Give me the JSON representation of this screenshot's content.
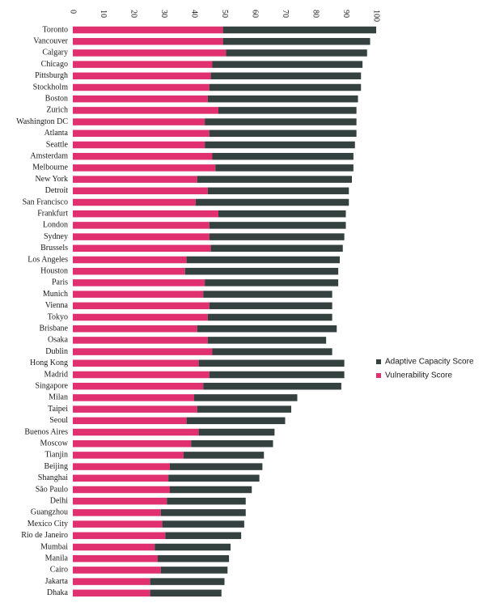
{
  "chart_data": {
    "type": "bar",
    "orientation": "horizontal",
    "stacked": true,
    "title": "",
    "xlabel": "",
    "ylabel": "",
    "xlim": [
      0,
      100
    ],
    "xticks": [
      0,
      10,
      20,
      30,
      40,
      50,
      60,
      70,
      80,
      90,
      100
    ],
    "grid": false,
    "legend_position": "right",
    "categories": [
      "Toronto",
      "Vancouver",
      "Calgary",
      "Chicago",
      "Pittsburgh",
      "Stockholm",
      "Boston",
      "Zurich",
      "Washington DC",
      "Atlanta",
      "Seattle",
      "Amsterdam",
      "Melbourne",
      "New York",
      "Detroit",
      "San Francisco",
      "Frankfurt",
      "London",
      "Sydney",
      "Brussels",
      "Los Angeles",
      "Houston",
      "Paris",
      "Munich",
      "Vienna",
      "Tokyo",
      "Brisbane",
      "Osaka",
      "Dublin",
      "Hong Kong",
      "Madrid",
      "Singapore",
      "Milan",
      "Taipei",
      "Seoul",
      "Buenos Aires",
      "Moscow",
      "Tianjin",
      "Beijing",
      "Shanghai",
      "São Paulo",
      "Delhi",
      "Guangzhou",
      "Mexico City",
      "Rio de Janeiro",
      "Mumbai",
      "Manila",
      "Cairo",
      "Jakarta",
      "Dhaka"
    ],
    "series": [
      {
        "name": "Vulnerability Score",
        "color": "#e0306f",
        "values": [
          49.5,
          49.5,
          50.5,
          46,
          45.5,
          45,
          44.5,
          48,
          43.5,
          45,
          43.5,
          46,
          47,
          41,
          44.5,
          40.5,
          48,
          45,
          45,
          45.5,
          37.5,
          37,
          43.5,
          43,
          45,
          44.5,
          41,
          44.5,
          46,
          41.5,
          45,
          43,
          40,
          41,
          37.5,
          41.5,
          39,
          36.5,
          32,
          31.5,
          32,
          31,
          29,
          29.5,
          30.5,
          27,
          28,
          29,
          25.5,
          25.5
        ]
      },
      {
        "name": "Adaptive Capacity Score",
        "color": "#34413f",
        "values": [
          50.5,
          48.5,
          46.5,
          49.5,
          49.5,
          50,
          49.5,
          45.5,
          50,
          48.5,
          49.5,
          46.5,
          45.5,
          51,
          46.5,
          50.5,
          42,
          45,
          44.5,
          43.5,
          50.5,
          50.5,
          44,
          42.5,
          40.5,
          41,
          46,
          39,
          39.5,
          48,
          44.5,
          45.5,
          34,
          31,
          32.5,
          25,
          27,
          26.5,
          30.5,
          30,
          27,
          26,
          28,
          27,
          25,
          25,
          23.5,
          22,
          24.5,
          23.5
        ]
      }
    ]
  }
}
